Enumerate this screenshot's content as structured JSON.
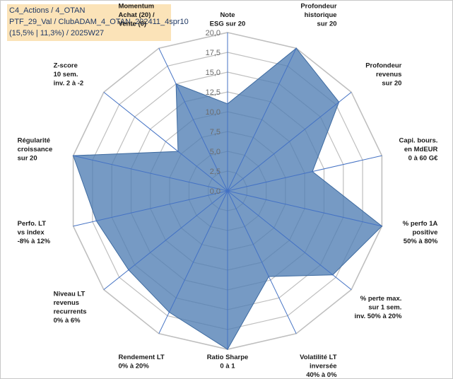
{
  "info": {
    "line1": "C4_Actions / 4_OTAN",
    "line2": "PTF_29_Val / ClubADAM_4_OTAN_202411_4spr10",
    "line3": "(15,5% | 11,3%) / 2025W27"
  },
  "chart_data": {
    "type": "radar",
    "rmin": 0,
    "rmax": 20,
    "ticks": [
      "0,0",
      "2,5",
      "5,0",
      "7,5",
      "10,0",
      "12,5",
      "15,0",
      "17,5",
      "20,0"
    ],
    "grid": true,
    "fill_color": "#4f7db3",
    "axis_color": "#4472c4",
    "grid_color": "#bfbfbf",
    "axes": [
      {
        "label": [
          "Note",
          "ESG sur 20"
        ],
        "value": 11
      },
      {
        "label": [
          "Profondeur",
          "historique",
          "sur 20"
        ],
        "value": 20
      },
      {
        "label": [
          "Profondeur",
          "revenus",
          "sur 20"
        ],
        "value": 18
      },
      {
        "label": [
          "Capi. bours.",
          "en MdEUR",
          "0 à 60 G€"
        ],
        "value": 11
      },
      {
        "label": [
          "% perfo 1A",
          "positive",
          "50% à 80%"
        ],
        "value": 20
      },
      {
        "label": [
          "% perte max.",
          "sur 1 sem.",
          "inv. 50% à 20%"
        ],
        "value": 17
      },
      {
        "label": [
          "Volatilité LT",
          "inversée",
          "40% à 0%"
        ],
        "value": 12
      },
      {
        "label": [
          "Ratio Sharpe",
          "0 à 1"
        ],
        "value": 20
      },
      {
        "label": [
          "Rendement LT",
          "0% à 20%"
        ],
        "value": 17
      },
      {
        "label": [
          "Niveau LT",
          "revenus",
          "recurrents",
          "0% à 6%"
        ],
        "value": 16
      },
      {
        "label": [
          "Perfo. LT",
          "vs index",
          "-8% à 12%"
        ],
        "value": 17
      },
      {
        "label": [
          "Régularité",
          "croissance",
          "sur 20"
        ],
        "value": 20
      },
      {
        "label": [
          "Z-score",
          "10 sem.",
          "inv. 2 à -2"
        ],
        "value": 8
      },
      {
        "label": [
          "Momentum",
          "Achat (20) /",
          "Vente (0)"
        ],
        "value": 15
      }
    ]
  }
}
